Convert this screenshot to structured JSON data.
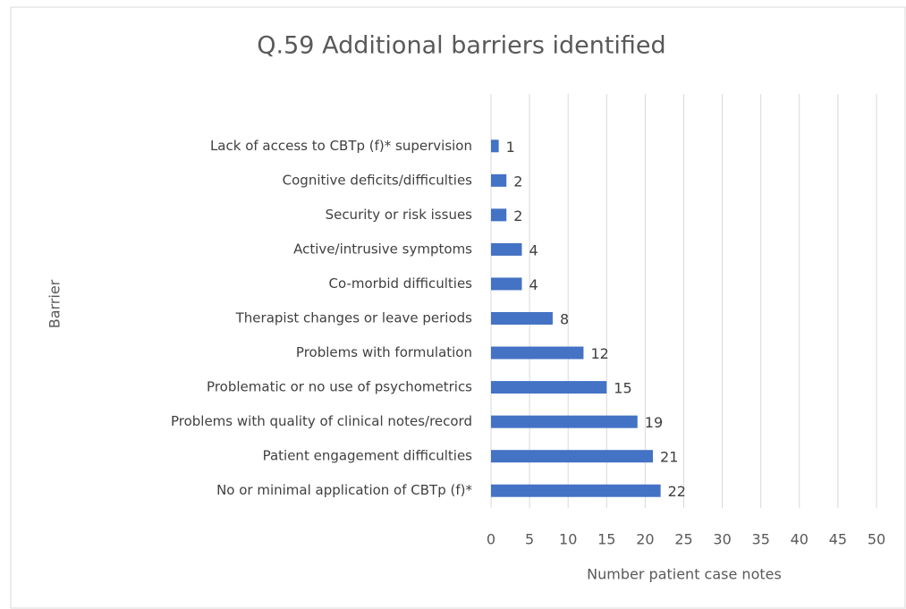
{
  "chart_data": {
    "type": "bar",
    "orientation": "horizontal",
    "title": "Q.59 Additional barriers identified",
    "x_label": "Number patient case notes",
    "y_label": "Barrier",
    "categories": [
      "Lack of access to CBTp (f)* supervision",
      "Cognitive deficits/difficulties",
      "Security or risk issues",
      "Active/intrusive symptoms",
      "Co-morbid difficulties",
      "Therapist changes or leave periods",
      "Problems with formulation",
      "Problematic or no use of psychometrics",
      "Problems with quality of clinical notes/record",
      "Patient engagement difficulties",
      "No or minimal application of CBTp (f)*"
    ],
    "values": [
      1,
      2,
      2,
      4,
      4,
      8,
      12,
      15,
      19,
      21,
      22
    ],
    "color": "#4472c4",
    "xlim": [
      0,
      50
    ],
    "xticks": [
      0,
      5,
      10,
      15,
      20,
      25,
      30,
      35,
      40,
      45,
      50
    ],
    "grid": true
  }
}
